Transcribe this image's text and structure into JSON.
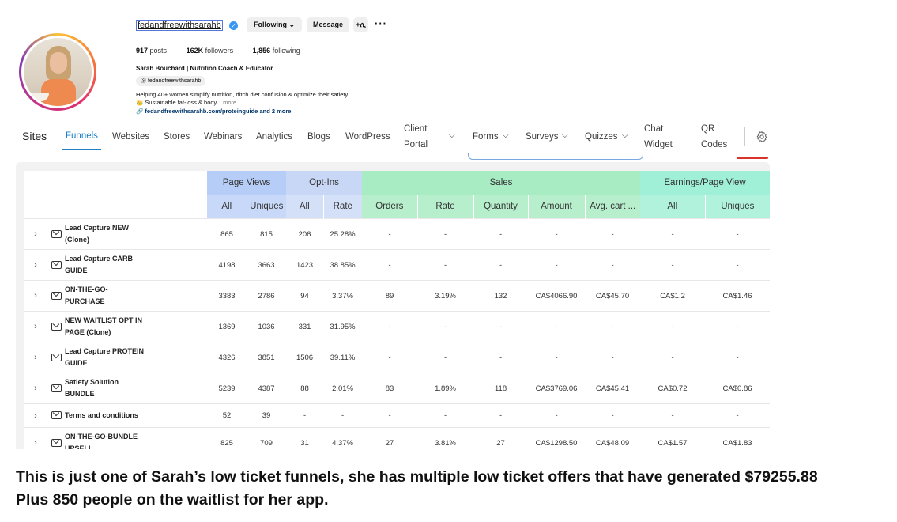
{
  "profile": {
    "username": "fedandfreewithsarahb",
    "follow_button": "Following",
    "message_button": "Message",
    "add_user_glyph": "+ሲ",
    "more_glyph": "···",
    "posts_count": "917",
    "posts_label": "posts",
    "followers_count": "162K",
    "followers_label": "followers",
    "following_count": "1,856",
    "following_label": "following",
    "full_name": "Sarah Bouchard | Nutrition Coach & Educator",
    "threads_handle": "fedandfreewithsarahb",
    "bio_line1": "Helping 40+ women simplify nutrition, ditch diet confusion & optimize their satiety",
    "bio_line2": "👑 Sustainable fat-loss & body...",
    "bio_more": "more",
    "bio_link": "🔗 fedandfreewithsarahb.com/proteinguide and 2 more"
  },
  "nav": {
    "sites": "Sites",
    "funnels": "Funnels",
    "websites": "Websites",
    "stores": "Stores",
    "webinars": "Webinars",
    "analytics": "Analytics",
    "blogs": "Blogs",
    "wordpress": "WordPress",
    "client_portal_1": "Client",
    "client_portal_2": "Portal",
    "forms": "Forms",
    "surveys": "Surveys",
    "quizzes": "Quizzes",
    "chat_widget_1": "Chat",
    "chat_widget_2": "Widget",
    "qr_codes_1": "QR",
    "qr_codes_2": "Codes"
  },
  "table": {
    "groups": {
      "page_views": "Page Views",
      "opt_ins": "Opt-Ins",
      "sales": "Sales",
      "earnings": "Earnings/Page View"
    },
    "sub": [
      "All",
      "Uniques",
      "All",
      "Rate",
      "Orders",
      "Rate",
      "Quantity",
      "Amount",
      "Avg. cart ...",
      "All",
      "Uniques"
    ],
    "rows": [
      {
        "name": "Lead Capture NEW (Clone)",
        "v": [
          "865",
          "815",
          "206",
          "25.28%",
          "-",
          "-",
          "-",
          "-",
          "-",
          "-",
          "-"
        ]
      },
      {
        "name": "Lead Capture CARB GUIDE",
        "v": [
          "4198",
          "3663",
          "1423",
          "38.85%",
          "-",
          "-",
          "-",
          "-",
          "-",
          "-",
          "-"
        ]
      },
      {
        "name": "ON-THE-GO-PURCHASE",
        "v": [
          "3383",
          "2786",
          "94",
          "3.37%",
          "89",
          "3.19%",
          "132",
          "CA$4066.90",
          "CA$45.70",
          "CA$1.2",
          "CA$1.46"
        ]
      },
      {
        "name": "NEW WAITLIST OPT IN PAGE (Clone)",
        "v": [
          "1369",
          "1036",
          "331",
          "31.95%",
          "-",
          "-",
          "-",
          "-",
          "-",
          "-",
          "-"
        ]
      },
      {
        "name": "Lead Capture PROTEIN GUIDE",
        "v": [
          "4326",
          "3851",
          "1506",
          "39.11%",
          "-",
          "-",
          "-",
          "-",
          "-",
          "-",
          "-"
        ]
      },
      {
        "name": "Satiety Solution BUNDLE",
        "v": [
          "5239",
          "4387",
          "88",
          "2.01%",
          "83",
          "1.89%",
          "118",
          "CA$3769.06",
          "CA$45.41",
          "CA$0.72",
          "CA$0.86"
        ]
      },
      {
        "name": "Terms and conditions",
        "v": [
          "52",
          "39",
          "-",
          "-",
          "-",
          "-",
          "-",
          "-",
          "-",
          "-",
          "-"
        ]
      },
      {
        "name": "ON-THE-GO-BUNDLE UPSELL",
        "v": [
          "825",
          "709",
          "31",
          "4.37%",
          "27",
          "3.81%",
          "27",
          "CA$1298.50",
          "CA$48.09",
          "CA$1.57",
          "CA$1.83"
        ]
      }
    ]
  },
  "caption": {
    "line1": "This is just one of Sarah’s low ticket funnels, she has multiple low ticket offers that have generated $79255.88",
    "line2": "Plus 850 people on the waitlist for her app."
  },
  "colors": {
    "accent": "#1e80c9",
    "page_views_header": "#b6cdf7",
    "sales_header": "#a8ecc4",
    "earnings_header": "#9ff0d6"
  }
}
